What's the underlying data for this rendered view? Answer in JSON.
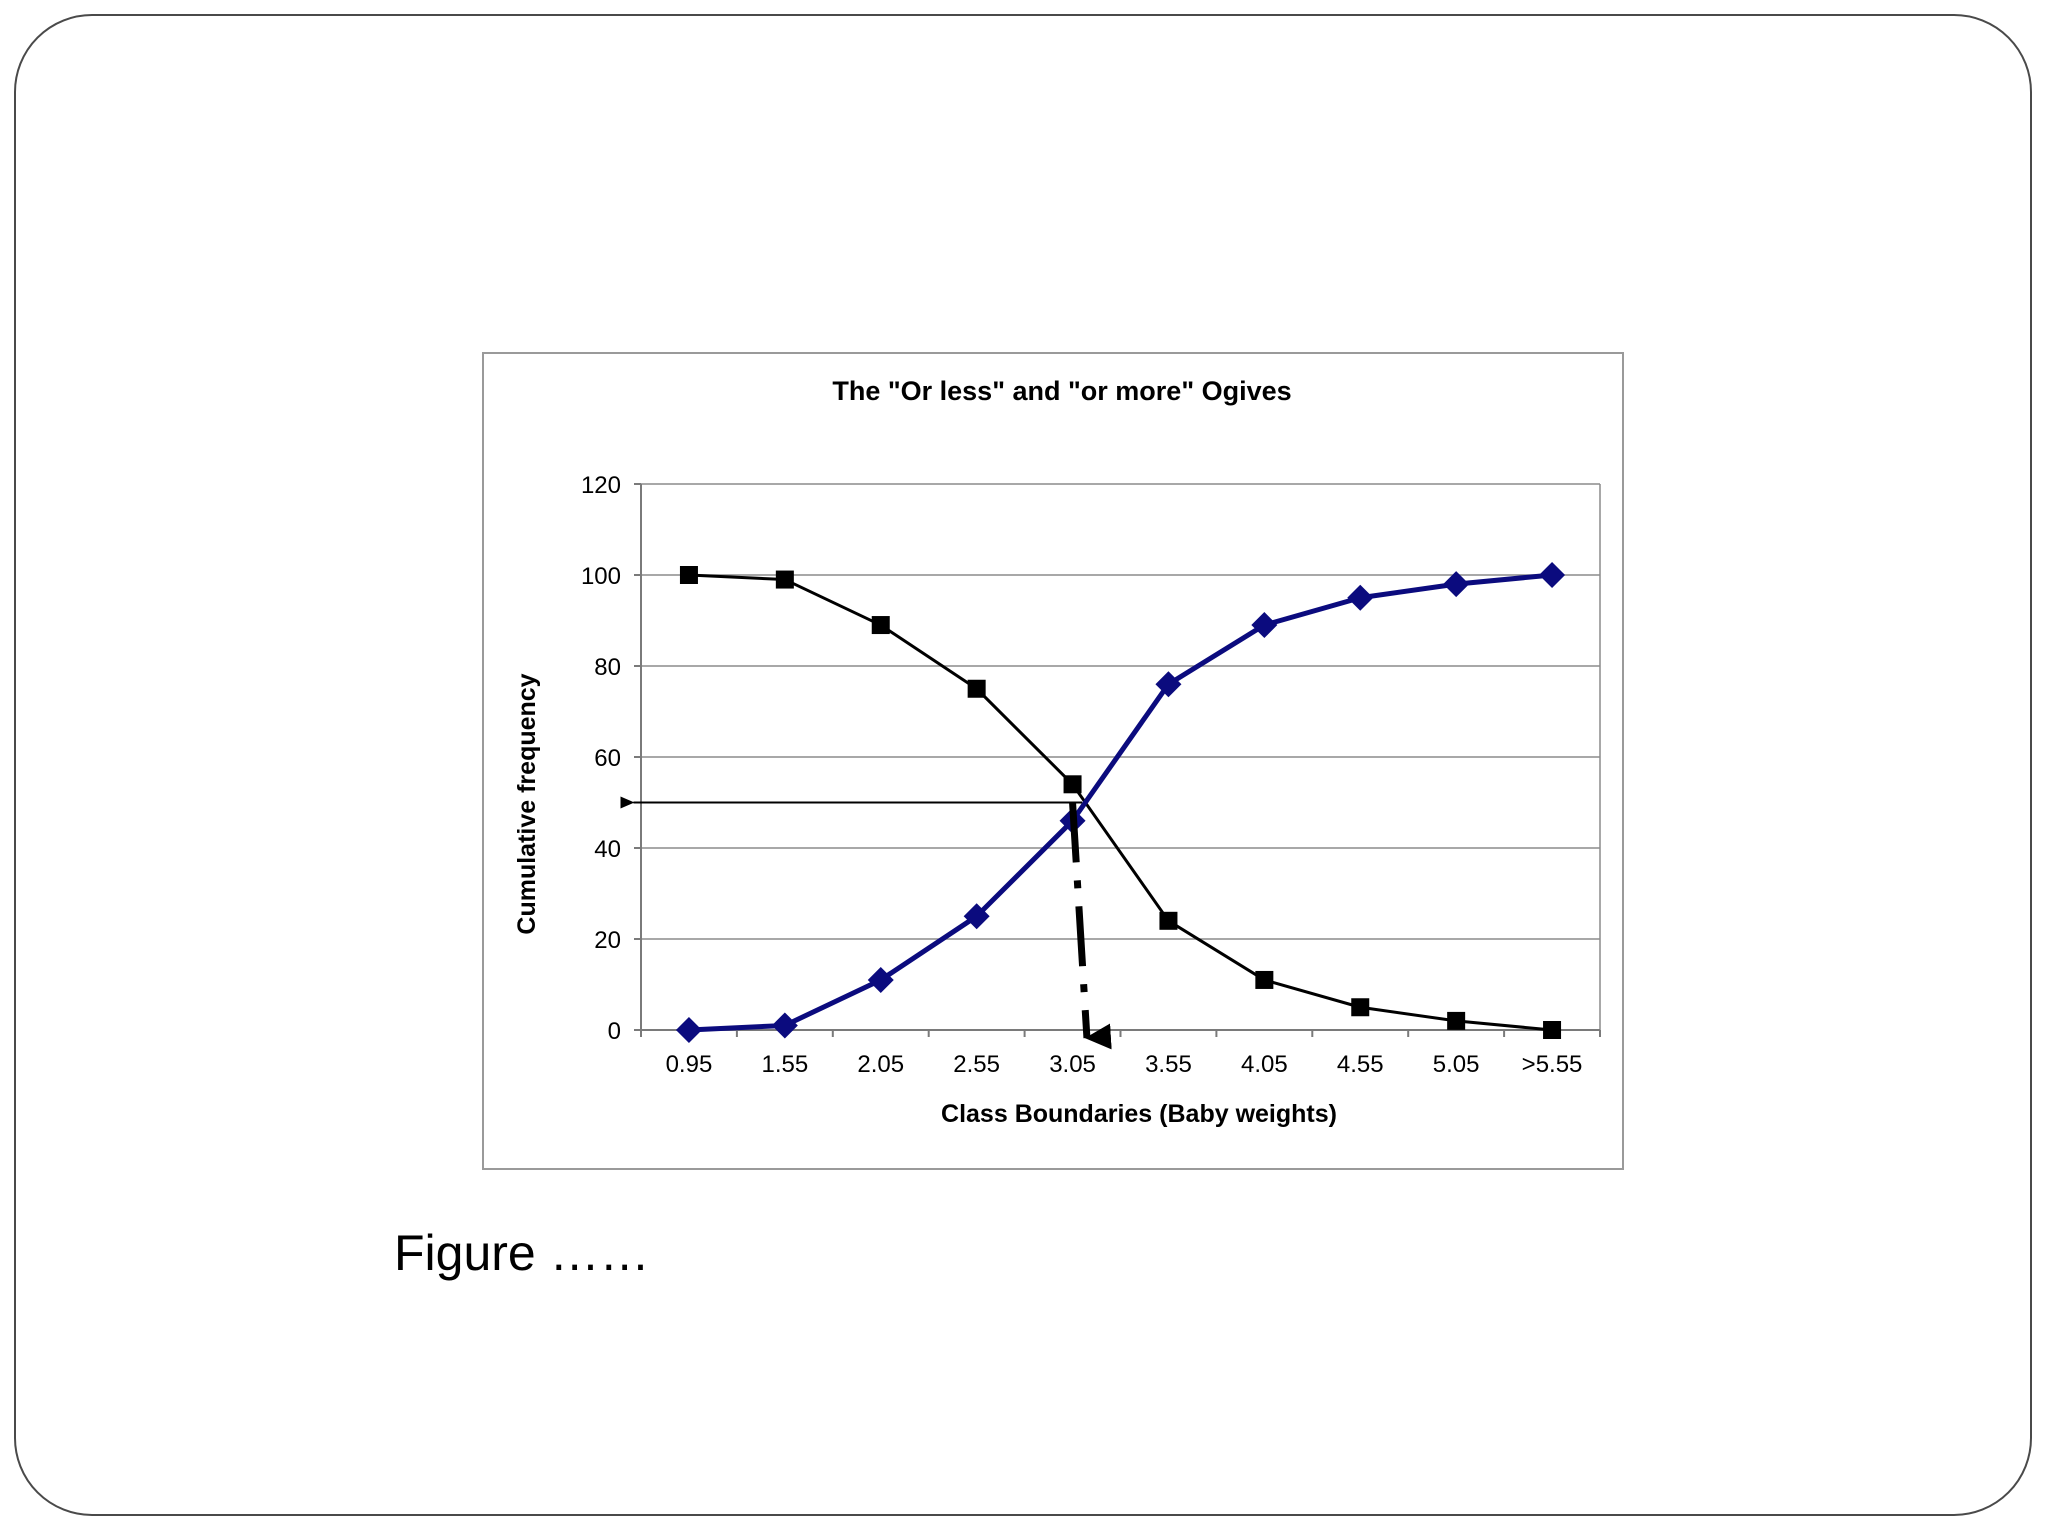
{
  "caption": "Figure ……",
  "chart_data": {
    "type": "line",
    "title": "The \"Or less\" and \"or more\" Ogives",
    "xlabel": "Class Boundaries (Baby weights)",
    "ylabel": "Cumulative frequency",
    "categories": [
      "0.95",
      "1.55",
      "2.05",
      "2.55",
      "3.05",
      "3.55",
      "4.05",
      "4.55",
      "5.05",
      ">5.55"
    ],
    "ylim": [
      0,
      120
    ],
    "yticks": [
      0,
      20,
      40,
      60,
      80,
      100,
      120
    ],
    "grid": true,
    "series": [
      {
        "values": [
          100,
          99,
          89,
          75,
          54,
          24,
          11,
          5,
          2,
          0
        ],
        "color": "#000000",
        "marker": "square"
      },
      {
        "values": [
          0,
          1,
          11,
          25,
          46,
          76,
          89,
          95,
          98,
          100
        ],
        "color": "#0b0b7e",
        "marker": "diamond"
      }
    ],
    "annotations": [
      {
        "kind": "horizontal-arrow",
        "from_index": 4.1,
        "to_index": -0.6,
        "y": 50
      },
      {
        "kind": "dashed-arrow-down",
        "from_index": 4.0,
        "from_y": 50,
        "to_index": 4.15,
        "to_y": 0
      }
    ]
  }
}
